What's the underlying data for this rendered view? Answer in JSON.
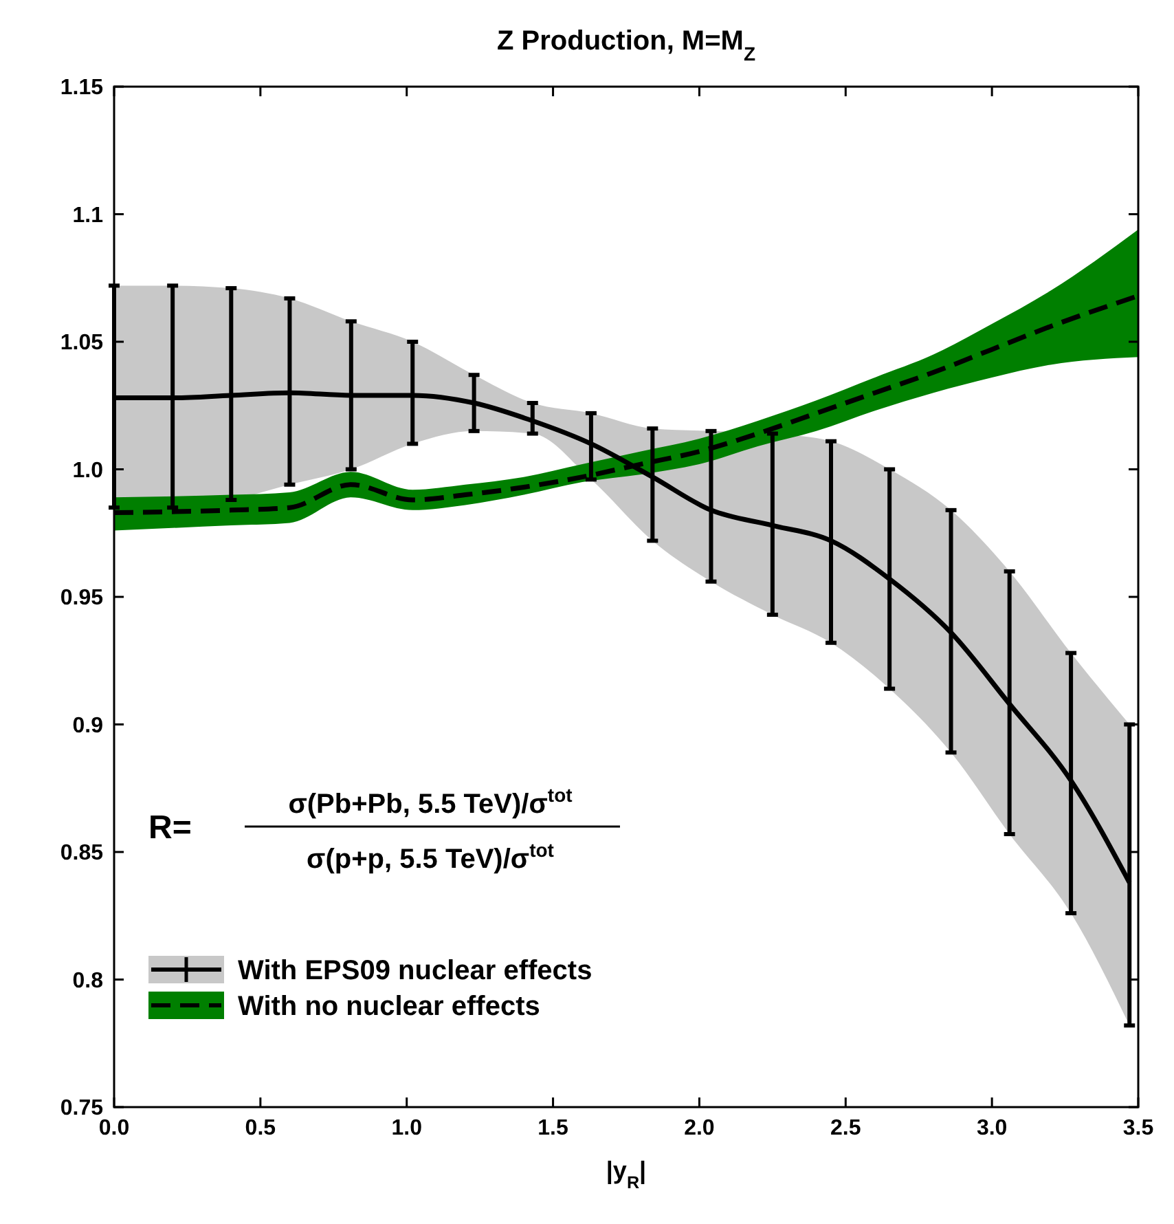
{
  "chart_data": {
    "type": "line",
    "title": "Z Production, M=M$_{Z}$",
    "xlabel": "|y$_{R}$|",
    "xlim": [
      0,
      3.5
    ],
    "xticks": [
      {
        "value": 0,
        "label": "0.0"
      },
      0.5,
      {
        "value": 1,
        "label": "1.0"
      },
      1.5,
      {
        "value": 2,
        "label": "2.0"
      },
      2.5,
      {
        "value": 3,
        "label": "3.0"
      },
      3.5
    ],
    "ylim": [
      0.75,
      1.15
    ],
    "yticks": [
      0.75,
      0.8,
      0.85,
      0.9,
      0.95,
      {
        "value": 1,
        "label": "1.0"
      },
      1.05,
      1.1,
      1.15
    ],
    "grid": false,
    "legend": "bottom left",
    "marker": "none",
    "annotations": [
      "R=",
      "σ(Pb+Pb, 5.5 TeV)/σ$^{tot}$",
      "σ(p+p, 5.5 TeV)/σ$^{tot}$"
    ],
    "series": [
      {
        "name": "With EPS09 nuclear effects",
        "color": "#000000",
        "line_style": "solid",
        "x": [
          0,
          0.2,
          0.4,
          0.6,
          0.81,
          1.02,
          1.23,
          1.43,
          1.63,
          1.84,
          2.04,
          2.25,
          2.45,
          2.65,
          2.86,
          3.06,
          3.27,
          3.47
        ],
        "values": [
          1.028,
          1.028,
          1.029,
          1.03,
          1.029,
          1.029,
          1.026,
          1.019,
          1.01,
          0.997,
          0.984,
          0.978,
          0.972,
          0.957,
          0.936,
          0.908,
          0.878,
          0.838
        ],
        "errors": [
          [
            0.985,
            1.072
          ],
          [
            0.985,
            1.072
          ],
          [
            0.988,
            1.071
          ],
          [
            0.994,
            1.067
          ],
          [
            1.0,
            1.058
          ],
          [
            1.01,
            1.05
          ],
          [
            1.015,
            1.037
          ],
          [
            1.014,
            1.026
          ],
          [
            0.996,
            1.022
          ],
          [
            0.972,
            1.016
          ],
          [
            0.956,
            1.015
          ],
          [
            0.943,
            1.014
          ],
          [
            0.932,
            1.011
          ],
          [
            0.914,
            1.0
          ],
          [
            0.889,
            0.984
          ],
          [
            0.857,
            0.96
          ],
          [
            0.826,
            0.928
          ],
          [
            0.782,
            0.9
          ]
        ],
        "lower": [
          0.985,
          0.985,
          0.988,
          0.994,
          1.0,
          1.01,
          1.015,
          1.014,
          0.996,
          0.972,
          0.956,
          0.943,
          0.932,
          0.914,
          0.889,
          0.857,
          0.826,
          0.782
        ],
        "upper": [
          1.072,
          1.072,
          1.071,
          1.067,
          1.058,
          1.05,
          1.037,
          1.026,
          1.022,
          1.016,
          1.015,
          1.014,
          1.011,
          1.0,
          0.984,
          0.96,
          0.928,
          0.9
        ]
      },
      {
        "name": "With no nuclear effects",
        "color": "#000000",
        "line_style": "dashed",
        "x": [
          0,
          0.4,
          0.6,
          0.81,
          1.02,
          1.2,
          1.4,
          1.6,
          1.8,
          2.0,
          2.2,
          2.4,
          2.6,
          2.8,
          3.0,
          3.2,
          3.5
        ],
        "values": [
          0.983,
          0.984,
          0.985,
          0.994,
          0.988,
          0.99,
          0.993,
          0.997,
          1.002,
          1.007,
          1.014,
          1.022,
          1.03,
          1.038,
          1.047,
          1.056,
          1.068
        ],
        "lower": [
          0.976,
          0.978,
          0.979,
          0.989,
          0.984,
          0.986,
          0.99,
          0.995,
          0.998,
          1.002,
          1.009,
          1.015,
          1.023,
          1.03,
          1.036,
          1.041,
          1.044
        ],
        "upper": [
          0.989,
          0.99,
          0.991,
          0.999,
          0.992,
          0.994,
          0.997,
          1.002,
          1.007,
          1.012,
          1.019,
          1.027,
          1.036,
          1.045,
          1.057,
          1.07,
          1.094
        ]
      }
    ]
  }
}
